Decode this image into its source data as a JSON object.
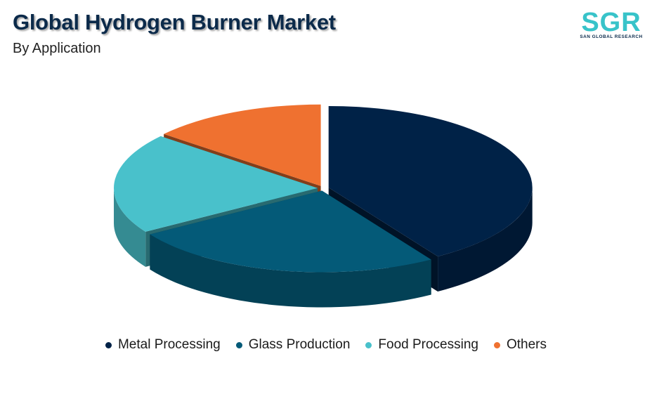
{
  "header": {
    "title": "Global Hydrogen Burner Market",
    "subtitle": "By Application"
  },
  "logo": {
    "text": "SGR",
    "tagline": "SAN GLOBAL RESEARCH"
  },
  "chart_data": {
    "type": "pie",
    "title": "Global Hydrogen Burner Market",
    "subtitle": "By Application",
    "style": "3d-exploded",
    "legend_position": "bottom",
    "categories": [
      "Metal Processing",
      "Glass Production",
      "Food Processing",
      "Others"
    ],
    "values": [
      41,
      25,
      20,
      14
    ],
    "colors": [
      "#002247",
      "#045a78",
      "#49c1cb",
      "#ef7130"
    ]
  }
}
